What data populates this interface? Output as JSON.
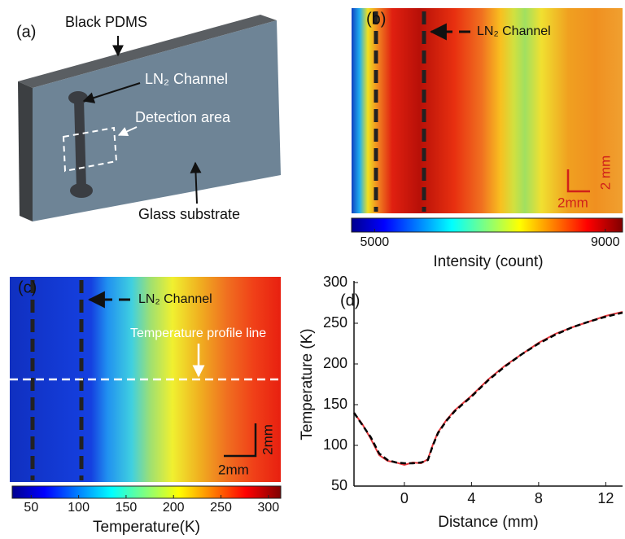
{
  "panels": {
    "a": {
      "label": "(a)",
      "black_pdms": "Black PDMS",
      "channel": "LN₂ Channel",
      "detection": "Detection area",
      "substrate": "Glass substrate"
    },
    "b": {
      "label": "(b)",
      "channel": "LN₂ Channel",
      "scale_x": "2mm",
      "scale_y": "2 mm",
      "colorbar": {
        "title": "Intensity (count)",
        "lim": [
          4600,
          9300
        ],
        "ticks": [
          5000,
          9000
        ]
      }
    },
    "c": {
      "label": "(c)",
      "channel": "LN₂ Channel",
      "profile": "Temperature profile line",
      "scale_x": "2mm",
      "scale_y": "2mm",
      "colorbar": {
        "title": "Temperature(K)",
        "lim": [
          30,
          313
        ],
        "ticks": [
          50,
          100,
          150,
          200,
          250,
          300
        ]
      }
    }
  },
  "chart_data": {
    "type": "line",
    "label": "(d)",
    "x_label": "Distance (mm)",
    "y_label": "Temperature (K)",
    "xlim": [
      -3,
      13
    ],
    "ylim": [
      50,
      300
    ],
    "xticks": [
      0,
      4,
      8,
      12
    ],
    "yticks": [
      50,
      100,
      150,
      200,
      250,
      300
    ],
    "x": [
      -3,
      -2.5,
      -2,
      -1.5,
      -1,
      -0.5,
      0,
      0.5,
      1,
      1.4,
      1.7,
      2,
      2.5,
      3,
      4,
      5,
      6,
      7,
      8,
      9,
      10,
      11,
      12,
      13
    ],
    "series": [
      {
        "color": "#e8383d",
        "values": [
          140,
          126,
          108,
          88,
          81,
          79,
          76,
          79,
          78,
          83,
          101,
          116,
          131,
          143,
          161,
          181,
          198,
          212,
          226,
          237,
          245,
          252,
          259,
          264
        ]
      },
      {
        "color": "#000000",
        "dash": true,
        "values": [
          140,
          125,
          110,
          90,
          82,
          79,
          78,
          78,
          79,
          82,
          100,
          115,
          130,
          142,
          160,
          180,
          197,
          212,
          225,
          236,
          245,
          252,
          258,
          263
        ]
      }
    ]
  }
}
